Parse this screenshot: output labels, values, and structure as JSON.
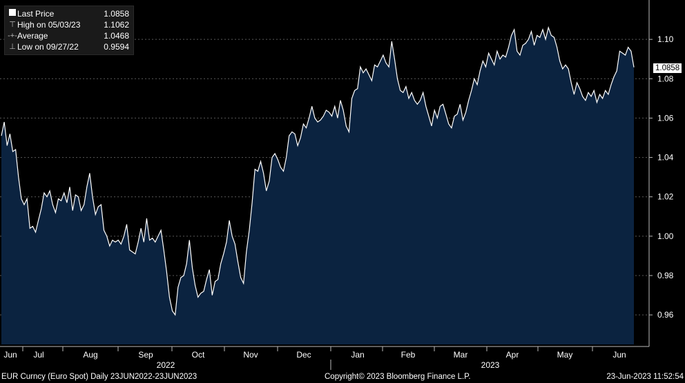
{
  "legend": {
    "last_label": "Last Price",
    "last_value": "1.0858",
    "high_label": "High on 05/03/23",
    "high_value": "1.1062",
    "avg_label": "Average",
    "avg_value": "1.0468",
    "low_label": "Low on 09/27/22",
    "low_value": "0.9594"
  },
  "footer": {
    "ticker": "EUR Curncy (Euro Spot)  Daily 23JUN2022-23JUN2023",
    "copyright": "Copyright© 2023 Bloomberg Finance L.P.",
    "timestamp": "23-Jun-2023 11:52:54"
  },
  "colors": {
    "area": "#0b2340",
    "line": "#ffffff",
    "grid": "#5a5a5a",
    "background": "#000000"
  },
  "chart_data": {
    "type": "area",
    "ylim": [
      0.945,
      1.12
    ],
    "yticks": [
      0.96,
      0.98,
      1.0,
      1.02,
      1.04,
      1.06,
      1.08,
      1.1
    ],
    "ytick_labels": [
      "0.96",
      "0.98",
      "1.00",
      "1.02",
      "1.04",
      "1.06",
      "1.08",
      "1.10"
    ],
    "last_value_label": "1.0858",
    "month_labels": [
      "Jun",
      "Jul",
      "Aug",
      "Sep",
      "Oct",
      "Nov",
      "Dec",
      "Jan",
      "Feb",
      "Mar",
      "Apr",
      "May",
      "Jun"
    ],
    "year_labels": [
      "2022",
      "2023"
    ],
    "series": [
      {
        "values": [
          1.051,
          1.058,
          1.046,
          1.052,
          1.043,
          1.044,
          1.03,
          1.019,
          1.016,
          1.019,
          1.004,
          1.005,
          1.002,
          1.008,
          1.014,
          1.022,
          1.02,
          1.023,
          1.016,
          1.012,
          1.019,
          1.018,
          1.022,
          1.017,
          1.025,
          1.013,
          1.021,
          1.02,
          1.013,
          1.016,
          1.025,
          1.032,
          1.02,
          1.011,
          1.015,
          1.016,
          1.003,
          1.0,
          0.995,
          0.998,
          0.997,
          0.998,
          0.996,
          1.0,
          1.006,
          0.993,
          0.992,
          0.991,
          0.997,
          1.004,
          0.997,
          1.009,
          0.998,
          0.999,
          0.997,
          1.0,
          1.003,
          0.993,
          0.982,
          0.969,
          0.962,
          0.96,
          0.974,
          0.979,
          0.98,
          0.986,
          0.998,
          0.984,
          0.975,
          0.969,
          0.971,
          0.972,
          0.978,
          0.983,
          0.97,
          0.977,
          0.978,
          0.986,
          0.991,
          0.997,
          1.008,
          1.0,
          0.996,
          0.987,
          0.979,
          0.976,
          0.992,
          1.003,
          1.017,
          1.034,
          1.033,
          1.038,
          1.032,
          1.023,
          1.028,
          1.04,
          1.042,
          1.039,
          1.035,
          1.033,
          1.04,
          1.051,
          1.053,
          1.052,
          1.046,
          1.05,
          1.057,
          1.055,
          1.06,
          1.066,
          1.06,
          1.058,
          1.059,
          1.061,
          1.064,
          1.063,
          1.061,
          1.066,
          1.06,
          1.069,
          1.064,
          1.056,
          1.053,
          1.07,
          1.074,
          1.075,
          1.086,
          1.083,
          1.085,
          1.082,
          1.079,
          1.087,
          1.086,
          1.089,
          1.092,
          1.088,
          1.086,
          1.099,
          1.09,
          1.08,
          1.074,
          1.073,
          1.076,
          1.07,
          1.073,
          1.069,
          1.067,
          1.069,
          1.073,
          1.066,
          1.061,
          1.056,
          1.064,
          1.06,
          1.066,
          1.067,
          1.062,
          1.057,
          1.055,
          1.061,
          1.062,
          1.067,
          1.059,
          1.063,
          1.069,
          1.074,
          1.08,
          1.077,
          1.084,
          1.089,
          1.086,
          1.093,
          1.09,
          1.087,
          1.094,
          1.09,
          1.092,
          1.091,
          1.096,
          1.102,
          1.105,
          1.094,
          1.092,
          1.097,
          1.098,
          1.1,
          1.104,
          1.097,
          1.102,
          1.101,
          1.105,
          1.1,
          1.106,
          1.102,
          1.101,
          1.096,
          1.089,
          1.085,
          1.087,
          1.085,
          1.078,
          1.072,
          1.078,
          1.075,
          1.071,
          1.069,
          1.073,
          1.071,
          1.074,
          1.068,
          1.072,
          1.07,
          1.074,
          1.072,
          1.077,
          1.081,
          1.084,
          1.094,
          1.093,
          1.092,
          1.096,
          1.094,
          1.0858
        ]
      }
    ]
  }
}
